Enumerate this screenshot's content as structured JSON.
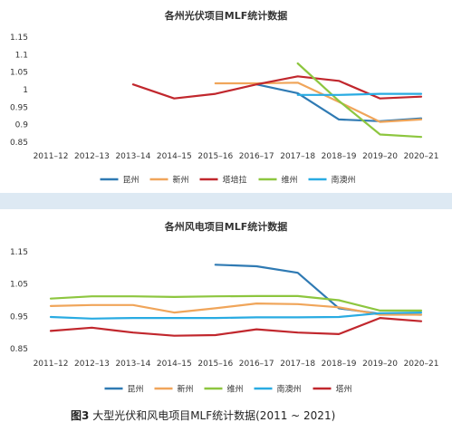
{
  "caption": {
    "label": "图3",
    "text": "大型光伏和风电项目MLF统计数据(2011 ~ 2021)"
  },
  "chart_data": [
    {
      "type": "line",
      "title": "各州光伏项目MLF统计数据",
      "categories": [
        "2011–12",
        "2012–13",
        "2013–14",
        "2014–15",
        "2015–16",
        "2016–17",
        "2017–18",
        "2018–19",
        "2019–20",
        "2020–21"
      ],
      "ylim": [
        0.85,
        1.15
      ],
      "yticks": [
        "0.85",
        "0.9",
        "0.95",
        "1",
        "1.05",
        "1.1",
        "1.15"
      ],
      "grid": false,
      "legend": "bottom",
      "series": [
        {
          "name": "昆州",
          "color": "#2f7ab3",
          "values": [
            null,
            null,
            null,
            null,
            null,
            1.015,
            0.99,
            0.915,
            0.91,
            0.918
          ]
        },
        {
          "name": "新州",
          "color": "#f0a55a",
          "values": [
            null,
            null,
            null,
            null,
            1.018,
            1.018,
            1.02,
            0.965,
            0.908,
            0.915
          ]
        },
        {
          "name": "塔培拉",
          "color": "#c1272d",
          "values": [
            null,
            null,
            1.015,
            0.975,
            0.988,
            1.015,
            1.038,
            1.025,
            0.975,
            0.98
          ]
        },
        {
          "name": "维州",
          "color": "#8dc63f",
          "values": [
            null,
            null,
            null,
            null,
            null,
            null,
            1.075,
            0.968,
            0.872,
            0.865
          ]
        },
        {
          "name": "南澳州",
          "color": "#29abe2",
          "values": [
            null,
            null,
            null,
            null,
            null,
            null,
            0.985,
            0.985,
            0.988,
            0.988
          ]
        }
      ]
    },
    {
      "type": "line",
      "title": "各州风电项目MLF统计数据",
      "categories": [
        "2011–12",
        "2012–13",
        "2013–14",
        "2014–15",
        "2015–16",
        "2016–17",
        "2017–18",
        "2018–19",
        "2019–20",
        "2020–21"
      ],
      "ylim": [
        0.85,
        1.15
      ],
      "yticks": [
        "0.85",
        "0.95",
        "1.05",
        "1.15"
      ],
      "grid": false,
      "legend": "bottom",
      "series": [
        {
          "name": "昆州",
          "color": "#2f7ab3",
          "values": [
            null,
            null,
            null,
            null,
            1.11,
            1.105,
            1.085,
            0.975,
            0.958,
            0.955
          ]
        },
        {
          "name": "新州",
          "color": "#f0a55a",
          "values": [
            0.982,
            0.985,
            0.985,
            0.962,
            0.975,
            0.99,
            0.988,
            0.978,
            0.955,
            0.955
          ]
        },
        {
          "name": "维州",
          "color": "#8dc63f",
          "values": [
            1.005,
            1.012,
            1.012,
            1.01,
            1.012,
            1.013,
            1.013,
            1.0,
            0.968,
            0.968
          ]
        },
        {
          "name": "南澳州",
          "color": "#29abe2",
          "values": [
            0.948,
            0.943,
            0.945,
            0.945,
            0.945,
            0.947,
            0.947,
            0.948,
            0.96,
            0.962
          ]
        },
        {
          "name": "塔州",
          "color": "#c1272d",
          "values": [
            0.905,
            0.915,
            0.9,
            0.89,
            0.892,
            0.91,
            0.9,
            0.895,
            0.945,
            0.935
          ]
        }
      ]
    }
  ]
}
